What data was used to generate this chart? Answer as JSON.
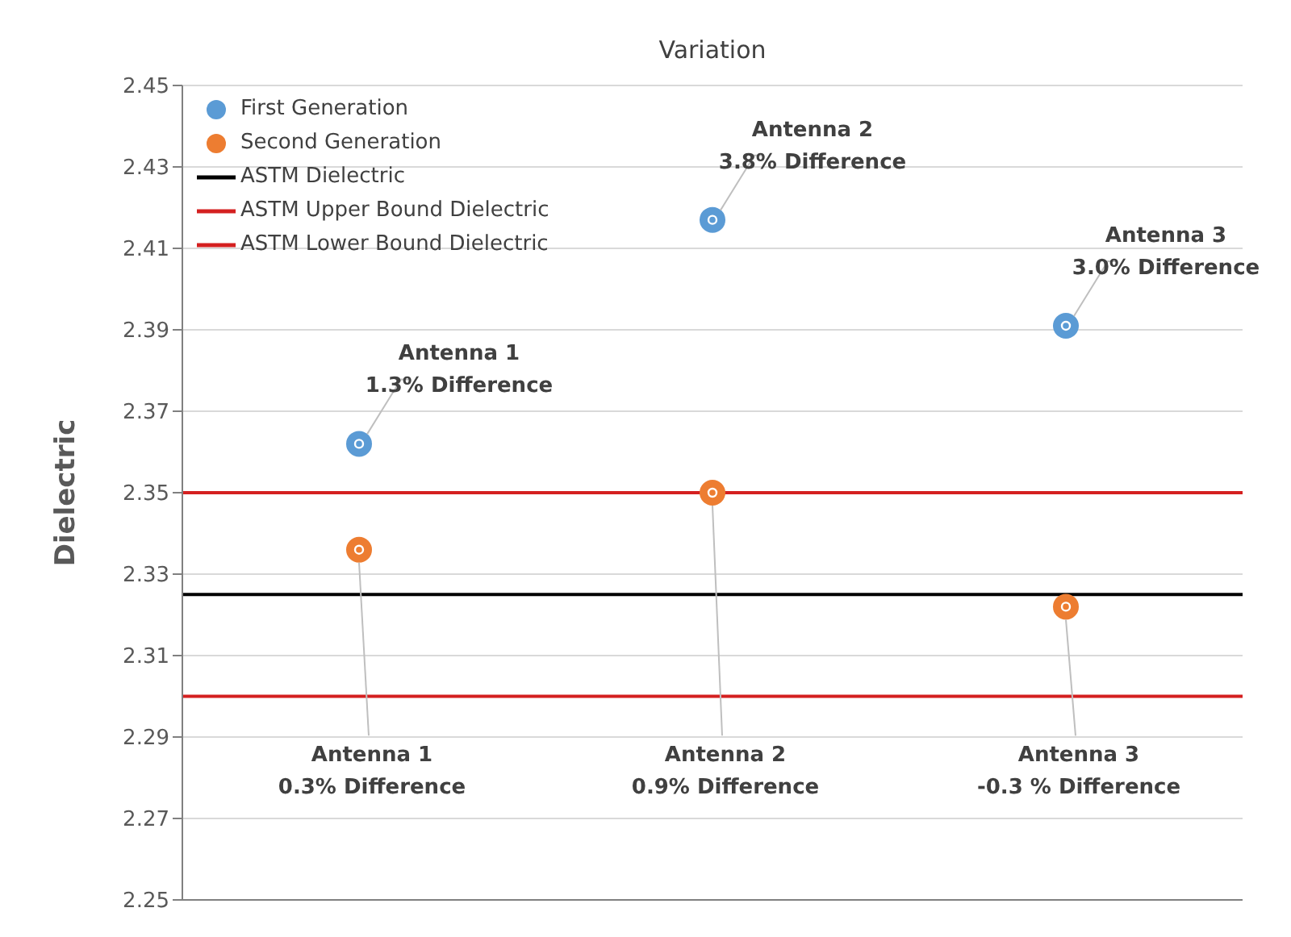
{
  "chart_data": {
    "type": "scatter",
    "title": "Variation",
    "ylabel": "Dielectric",
    "categories": [
      null,
      null,
      null
    ],
    "series": [
      {
        "name": "First Generation",
        "color": "#5b9bd5",
        "values": [
          2.362,
          2.417,
          2.391
        ]
      },
      {
        "name": "Second Generation",
        "color": "#ed7d31",
        "values": [
          2.336,
          2.35,
          2.322
        ]
      }
    ],
    "ref_lines": [
      {
        "axis": "y",
        "value": 2.325,
        "label": "ASTM Dielectric",
        "color": "#000000"
      },
      {
        "axis": "y",
        "value": 2.35,
        "label": "ASTM Upper Bound Dielectric",
        "color": "#d42020"
      },
      {
        "axis": "y",
        "value": 2.3,
        "label": "ASTM Lower Bound Dielectric",
        "color": "#d42020"
      }
    ],
    "annotations": [
      "Antenna 1\n1.3% Difference",
      "Antenna 2\n3.8% Difference",
      "Antenna 3\n3.0% Difference",
      "Antenna 1\n0.3% Difference",
      "Antenna 2\n0.9% Difference",
      "Antenna 3\n-0.3 % Difference"
    ],
    "ylim": [
      2.25,
      2.45
    ],
    "yticks": [
      2.25,
      2.27,
      2.29,
      2.31,
      2.33,
      2.35,
      2.37,
      2.39,
      2.41,
      2.43,
      2.45
    ],
    "grid": "y",
    "legend": "top left",
    "marker": "circle"
  }
}
